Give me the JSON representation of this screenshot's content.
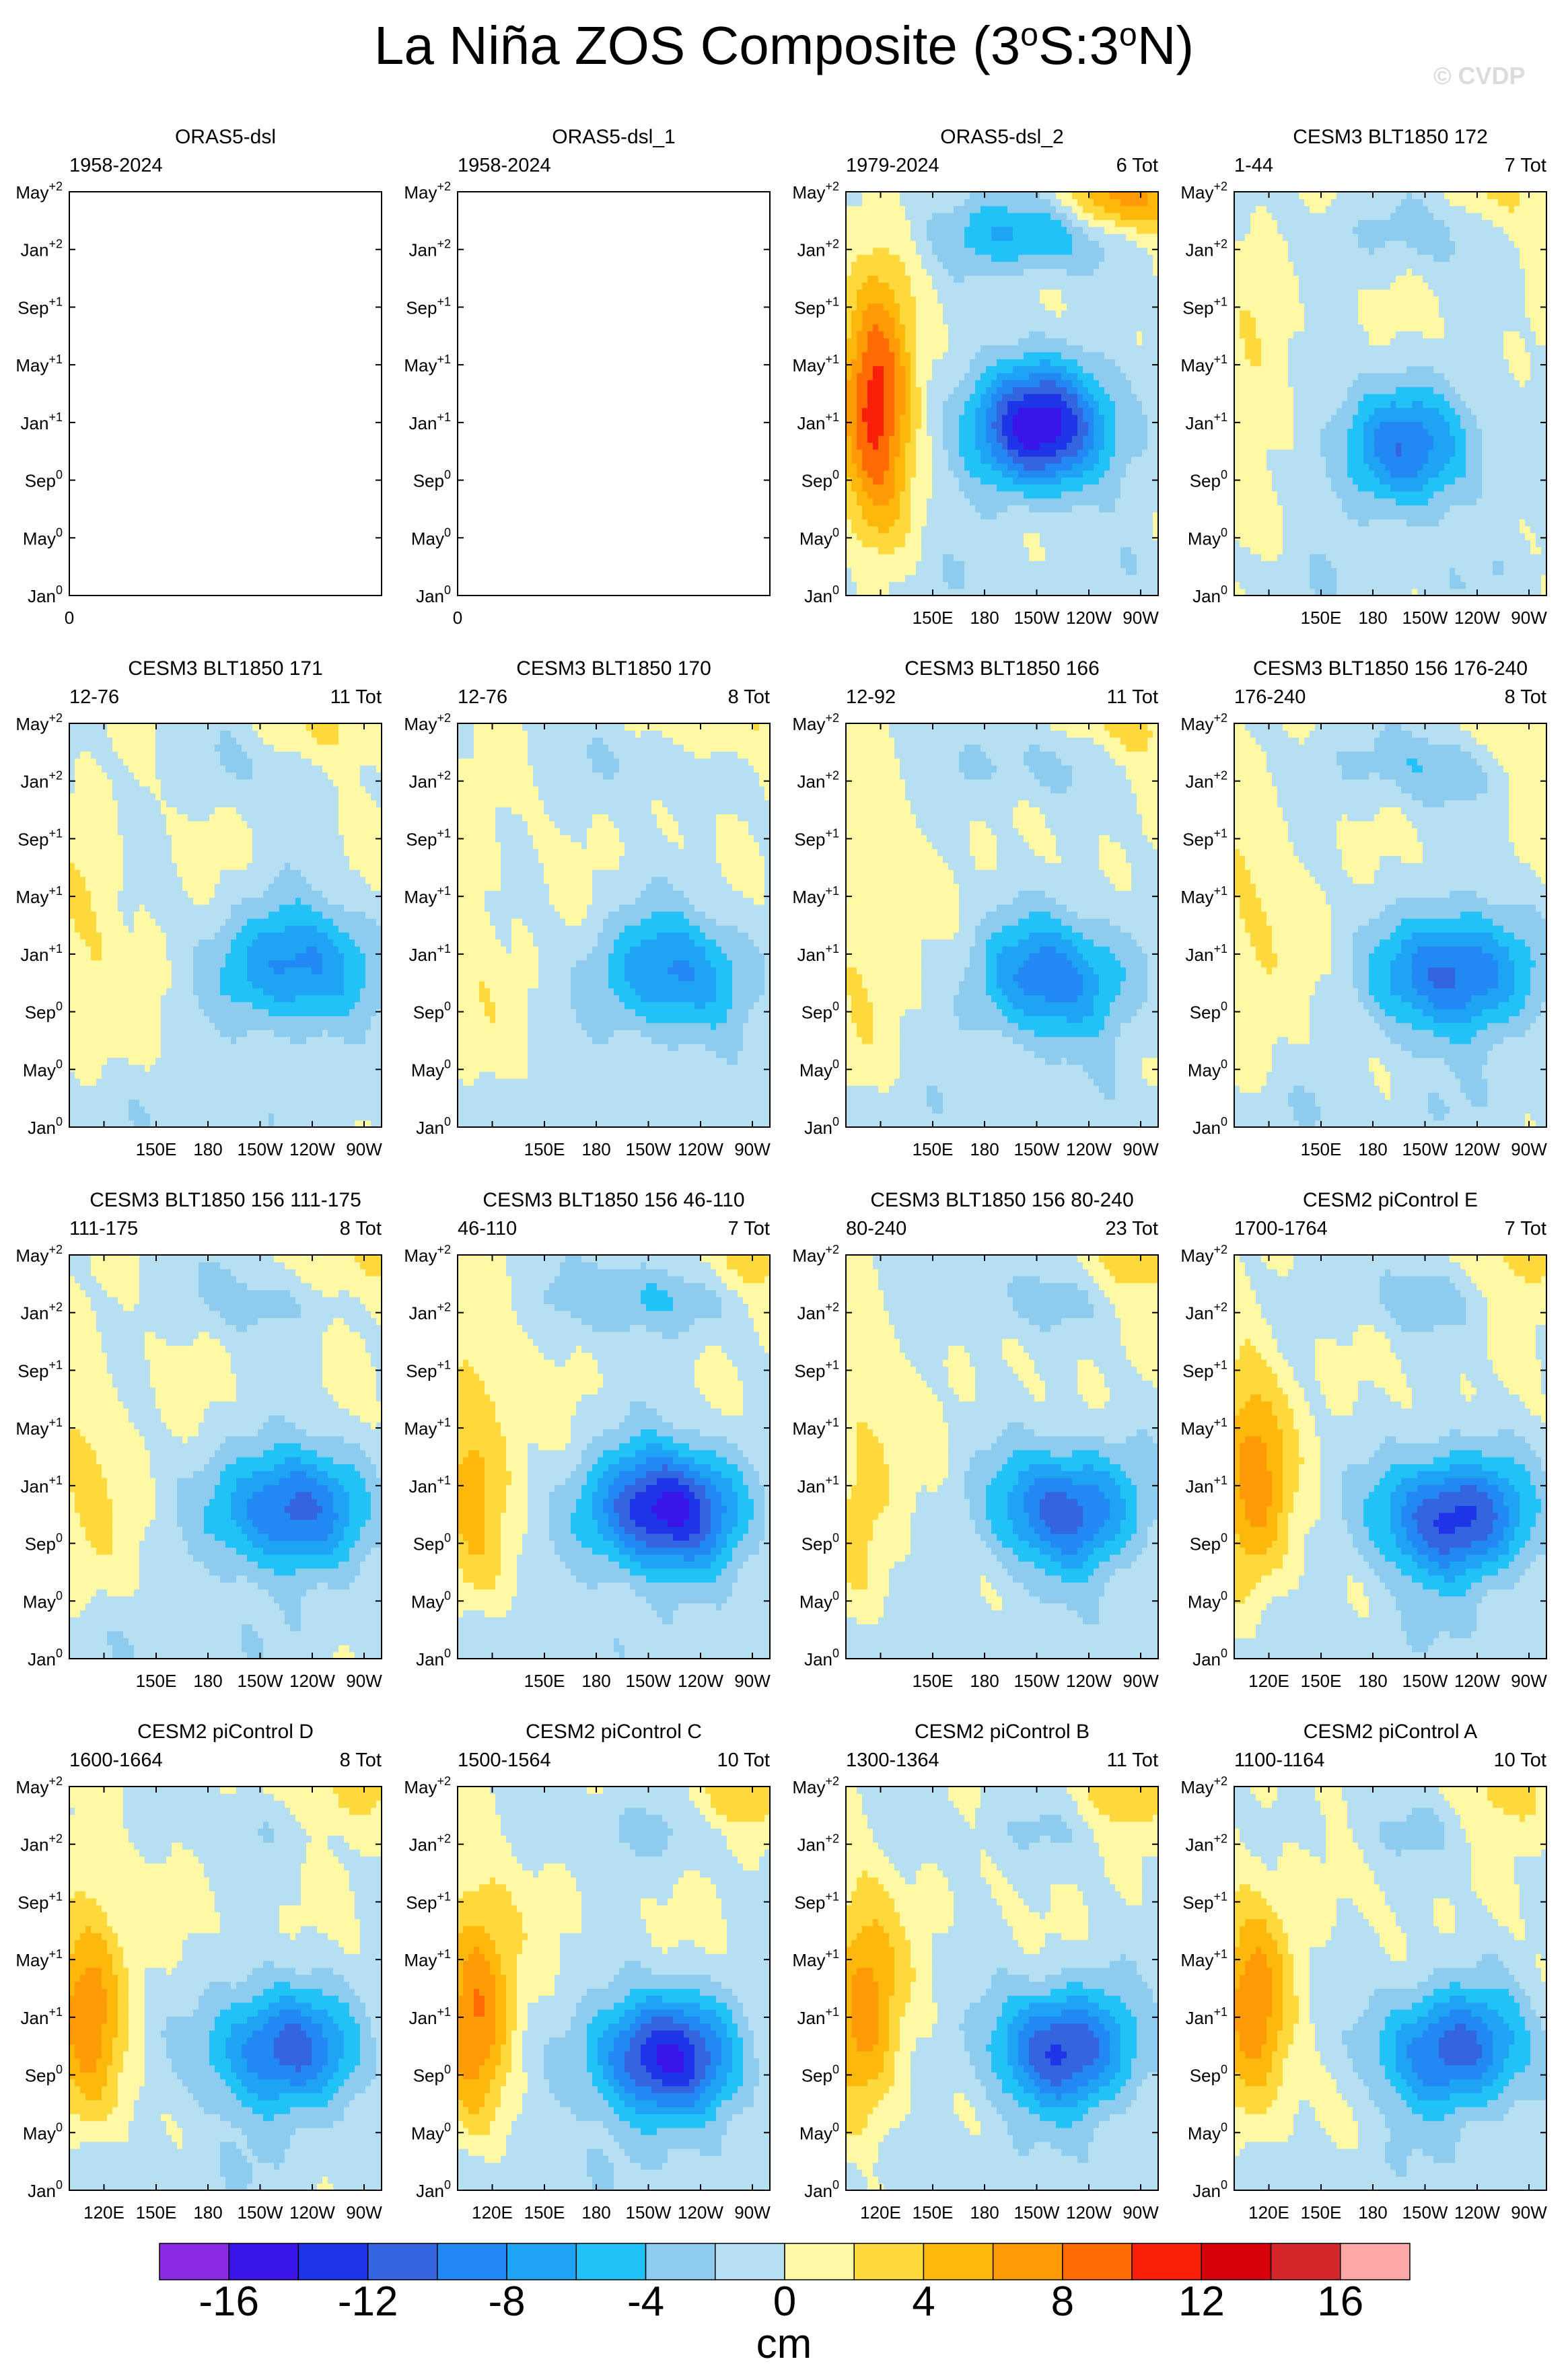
{
  "title": "La Niña ZOS Composite (3oS:3oN)",
  "title_parts": {
    "pre": "La Niña ZOS Composite (3",
    "deg1": "o",
    "mid": "S:3",
    "deg2": "o",
    "post": "N)"
  },
  "watermark": "© CVDP",
  "chart_data": {
    "type": "heatmap",
    "variable": "ZOS",
    "region": "3°S:3°N",
    "x_axis": {
      "range": [
        "100E",
        "80W"
      ],
      "ticks": [
        "120E",
        "150E",
        "180",
        "150W",
        "120W",
        "90W"
      ]
    },
    "y_axis": {
      "ticks": [
        "Jan0",
        "May0",
        "Sep0",
        "Jan+1",
        "May+1",
        "Sep+1",
        "Jan+2",
        "May+2"
      ]
    },
    "colorbar": {
      "unit": "cm",
      "levels": [
        -18,
        -16,
        -14,
        -12,
        -10,
        -8,
        -6,
        -4,
        -2,
        0,
        2,
        4,
        6,
        8,
        10,
        12,
        14,
        16,
        18
      ],
      "colors": [
        "#8a2be2",
        "#3a14ea",
        "#1e35e8",
        "#3465e0",
        "#2288f3",
        "#1fa3f5",
        "#21c2f6",
        "#8dcbef",
        "#b6dff1",
        "#fdf8a4",
        "#fed93c",
        "#feb80b",
        "#fe9a05",
        "#fe6a04",
        "#fb1e08",
        "#d9000a",
        "#d5262b",
        "#fca8a8"
      ],
      "labels": [
        "-16",
        "-12",
        "-8",
        "-4",
        "0",
        "4",
        "8",
        "12",
        "16"
      ]
    },
    "panels": [
      {
        "title": "ORAS5-dsl",
        "period": "1958-2024",
        "count": "",
        "empty": true
      },
      {
        "title": "ORAS5-dsl_1",
        "period": "1958-2024",
        "count": "",
        "empty": true
      },
      {
        "title": "ORAS5-dsl_2",
        "period": "1979-2024",
        "count": "6 Tot",
        "pattern": {
          "cold_peak": -15,
          "cold_lon": 0.62,
          "cold_t": 0.42,
          "warm_peak": 12,
          "warm_lon": 0.1,
          "warm_t": 0.47,
          "late_cold": -7,
          "late_warm": 8,
          "seed": 3
        }
      },
      {
        "title": "CESM3 BLT1850 172",
        "period": "1-44",
        "count": "7 Tot",
        "pattern": {
          "cold_peak": -9,
          "cold_lon": 0.55,
          "cold_t": 0.37,
          "warm_peak": 2,
          "warm_lon": 0.05,
          "warm_t": 0.45,
          "late_cold": -3,
          "late_warm": 2.5,
          "seed": 4
        }
      },
      {
        "title": "CESM3 BLT1850 171",
        "period": "12-76",
        "count": "11 Tot",
        "pattern": {
          "cold_peak": -9,
          "cold_lon": 0.72,
          "cold_t": 0.4,
          "warm_peak": 2,
          "warm_lon": 0.05,
          "warm_t": 0.45,
          "late_cold": -2,
          "late_warm": 3,
          "seed": 5
        }
      },
      {
        "title": "CESM3 BLT1850 170",
        "period": "12-76",
        "count": "8 Tot",
        "pattern": {
          "cold_peak": -8.5,
          "cold_lon": 0.68,
          "cold_t": 0.38,
          "warm_peak": 1.5,
          "warm_lon": 0.05,
          "warm_t": 0.4,
          "late_cold": -2,
          "late_warm": 2.5,
          "seed": 6
        }
      },
      {
        "title": "CESM3 BLT1850 166",
        "period": "12-92",
        "count": "11 Tot",
        "pattern": {
          "cold_peak": -9.5,
          "cold_lon": 0.66,
          "cold_t": 0.37,
          "warm_peak": 2.5,
          "warm_lon": 0.05,
          "warm_t": 0.47,
          "late_cold": -3,
          "late_warm": 3,
          "seed": 7
        }
      },
      {
        "title": "CESM3 BLT1850 156 176-240",
        "period": "176-240",
        "count": "8 Tot",
        "pattern": {
          "cold_peak": -11,
          "cold_lon": 0.7,
          "cold_t": 0.38,
          "warm_peak": 2.5,
          "warm_lon": 0.05,
          "warm_t": 0.47,
          "late_cold": -4,
          "late_warm": 2.5,
          "seed": 8
        }
      },
      {
        "title": "CESM3 BLT1850 156 111-175",
        "period": "111-175",
        "count": "8 Tot",
        "pattern": {
          "cold_peak": -11,
          "cold_lon": 0.7,
          "cold_t": 0.37,
          "warm_peak": 2.5,
          "warm_lon": 0.05,
          "warm_t": 0.45,
          "late_cold": -3,
          "late_warm": 3,
          "seed": 9
        }
      },
      {
        "title": "CESM3 BLT1850 156 46-110",
        "period": "46-110",
        "count": "7 Tot",
        "pattern": {
          "cold_peak": -15,
          "cold_lon": 0.66,
          "cold_t": 0.37,
          "warm_peak": 5,
          "warm_lon": 0.05,
          "warm_t": 0.47,
          "late_cold": -5,
          "late_warm": 3.5,
          "seed": 10
        }
      },
      {
        "title": "CESM3 BLT1850 156 80-240",
        "period": "80-240",
        "count": "23 Tot",
        "pattern": {
          "cold_peak": -11,
          "cold_lon": 0.7,
          "cold_t": 0.37,
          "warm_peak": 3,
          "warm_lon": 0.05,
          "warm_t": 0.45,
          "late_cold": -3,
          "late_warm": 3,
          "seed": 11
        }
      },
      {
        "title": "CESM2 piControl E",
        "period": "1700-1764",
        "count": "7 Tot",
        "pattern": {
          "cold_peak": -13,
          "cold_lon": 0.7,
          "cold_t": 0.35,
          "warm_peak": 7,
          "warm_lon": 0.06,
          "warm_t": 0.45,
          "late_cold": -3,
          "late_warm": 3,
          "seed": 12
        }
      },
      {
        "title": "CESM2 piControl D",
        "period": "1600-1664",
        "count": "8 Tot",
        "pattern": {
          "cold_peak": -11,
          "cold_lon": 0.68,
          "cold_t": 0.35,
          "warm_peak": 7,
          "warm_lon": 0.06,
          "warm_t": 0.45,
          "late_cold": -2,
          "late_warm": 3,
          "seed": 13
        }
      },
      {
        "title": "CESM2 piControl C",
        "period": "1500-1564",
        "count": "10 Tot",
        "pattern": {
          "cold_peak": -14,
          "cold_lon": 0.66,
          "cold_t": 0.33,
          "warm_peak": 8,
          "warm_lon": 0.06,
          "warm_t": 0.46,
          "late_cold": -3,
          "late_warm": 4,
          "seed": 14
        }
      },
      {
        "title": "CESM2 piControl B",
        "period": "1300-1364",
        "count": "11 Tot",
        "pattern": {
          "cold_peak": -12,
          "cold_lon": 0.7,
          "cold_t": 0.35,
          "warm_peak": 7,
          "warm_lon": 0.06,
          "warm_t": 0.45,
          "late_cold": -2,
          "late_warm": 3,
          "seed": 15
        }
      },
      {
        "title": "CESM2 piControl A",
        "period": "1100-1164",
        "count": "10 Tot",
        "pattern": {
          "cold_peak": -11,
          "cold_lon": 0.7,
          "cold_t": 0.35,
          "warm_peak": 7,
          "warm_lon": 0.06,
          "warm_t": 0.45,
          "late_cold": -2,
          "late_warm": 3,
          "seed": 16
        }
      }
    ]
  }
}
